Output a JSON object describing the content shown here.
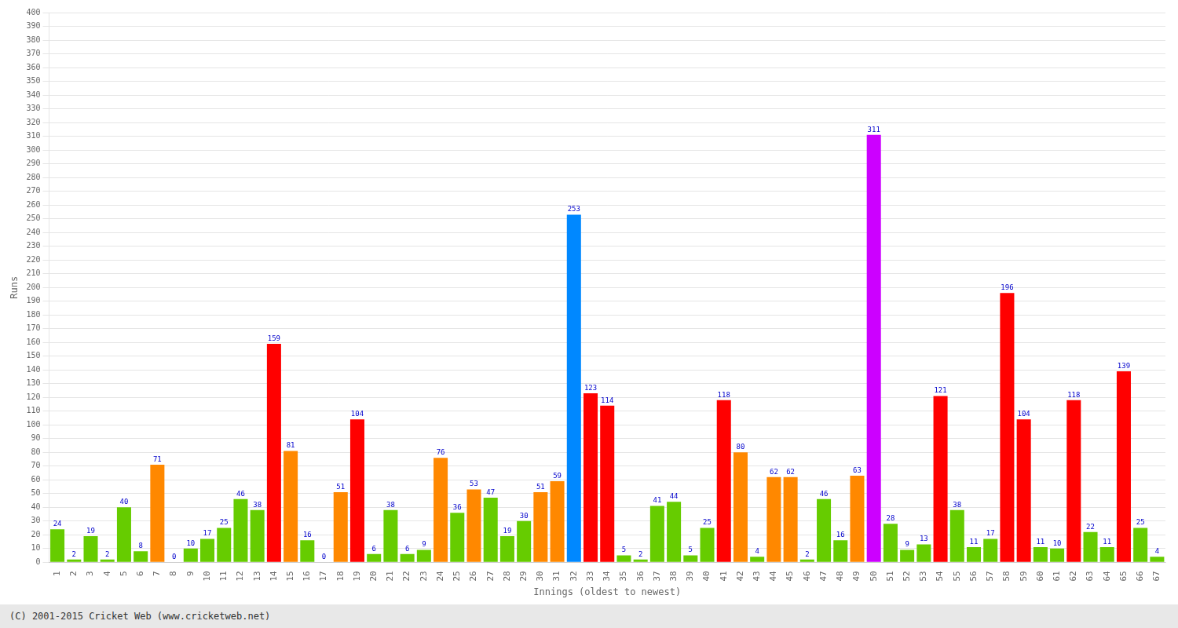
{
  "chart_data": {
    "type": "bar",
    "xlabel": "Innings (oldest to newest)",
    "ylabel": "Runs",
    "annotations": [
      "(C) 2001-2015 Cricket Web (www.cricketweb.net)"
    ],
    "categories": [
      1,
      2,
      3,
      4,
      5,
      6,
      7,
      8,
      9,
      10,
      11,
      12,
      13,
      14,
      15,
      16,
      17,
      18,
      19,
      20,
      21,
      22,
      23,
      24,
      25,
      26,
      27,
      28,
      29,
      30,
      31,
      32,
      33,
      34,
      35,
      36,
      37,
      38,
      39,
      40,
      41,
      42,
      43,
      44,
      45,
      46,
      47,
      48,
      49,
      50,
      51,
      52,
      53,
      54,
      55,
      56,
      57,
      58,
      59,
      60,
      61,
      62,
      63,
      64,
      65,
      66,
      67
    ],
    "values": [
      24,
      2,
      19,
      2,
      40,
      8,
      71,
      0,
      10,
      17,
      25,
      46,
      38,
      159,
      81,
      16,
      0,
      51,
      104,
      6,
      38,
      6,
      9,
      76,
      36,
      53,
      47,
      19,
      30,
      51,
      59,
      253,
      123,
      114,
      5,
      2,
      41,
      44,
      5,
      25,
      118,
      80,
      4,
      62,
      62,
      2,
      46,
      16,
      63,
      311,
      28,
      9,
      13,
      121,
      38,
      11,
      17,
      196,
      104,
      11,
      10,
      118,
      22,
      11,
      139,
      25,
      4
    ],
    "colors": [
      "#66cc00",
      "#66cc00",
      "#66cc00",
      "#66cc00",
      "#66cc00",
      "#66cc00",
      "#ff8800",
      "#66cc00",
      "#66cc00",
      "#66cc00",
      "#66cc00",
      "#66cc00",
      "#66cc00",
      "#ff0000",
      "#ff8800",
      "#66cc00",
      "#66cc00",
      "#ff8800",
      "#ff0000",
      "#66cc00",
      "#66cc00",
      "#66cc00",
      "#66cc00",
      "#ff8800",
      "#66cc00",
      "#ff8800",
      "#66cc00",
      "#66cc00",
      "#66cc00",
      "#ff8800",
      "#ff8800",
      "#0088ff",
      "#ff0000",
      "#ff0000",
      "#66cc00",
      "#66cc00",
      "#66cc00",
      "#66cc00",
      "#66cc00",
      "#66cc00",
      "#ff0000",
      "#ff8800",
      "#66cc00",
      "#ff8800",
      "#ff8800",
      "#66cc00",
      "#66cc00",
      "#66cc00",
      "#ff8800",
      "#cc00ff",
      "#66cc00",
      "#66cc00",
      "#66cc00",
      "#ff0000",
      "#66cc00",
      "#66cc00",
      "#66cc00",
      "#ff0000",
      "#ff0000",
      "#66cc00",
      "#66cc00",
      "#ff0000",
      "#66cc00",
      "#66cc00",
      "#ff0000",
      "#66cc00",
      "#66cc00"
    ],
    "ylim": [
      0,
      400
    ],
    "yticks": [
      0,
      10,
      20,
      30,
      40,
      50,
      60,
      70,
      80,
      90,
      100,
      110,
      120,
      130,
      140,
      150,
      160,
      170,
      180,
      190,
      200,
      210,
      220,
      230,
      240,
      250,
      260,
      270,
      280,
      290,
      300,
      310,
      320,
      330,
      340,
      350,
      360,
      370,
      380,
      390,
      400
    ],
    "grid": "y",
    "data_labels": true
  }
}
